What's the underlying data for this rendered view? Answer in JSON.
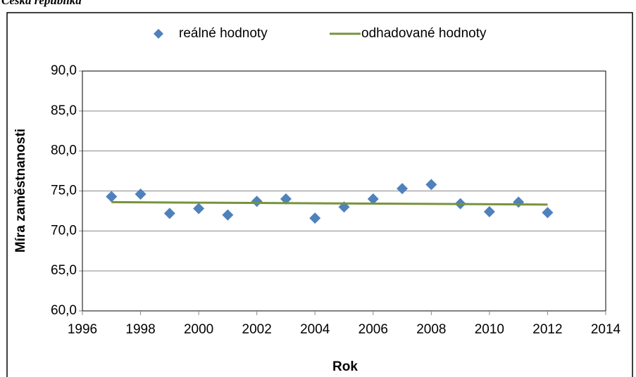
{
  "chart_data": {
    "type": "scatter",
    "title": "Česká republika",
    "x_label": "Rok",
    "y_label": "Míra zaměstnanosti",
    "xlim": [
      1996,
      2014
    ],
    "xticks": [
      1996,
      1998,
      2000,
      2002,
      2004,
      2006,
      2008,
      2010,
      2012,
      2014
    ],
    "ylim": [
      60,
      90
    ],
    "yticks": [
      {
        "value": 60,
        "label": "60,0"
      },
      {
        "value": 65,
        "label": "65,0"
      },
      {
        "value": 70,
        "label": "70,0"
      },
      {
        "value": 75,
        "label": "75,0"
      },
      {
        "value": 80,
        "label": "80,0"
      },
      {
        "value": 85,
        "label": "85,0"
      },
      {
        "value": 90,
        "label": "90,0"
      }
    ],
    "grid": true,
    "legend": "top",
    "series": [
      {
        "name": "reálné hodnoty",
        "type": "scatter",
        "color": "#4f81bd",
        "x": [
          1997,
          1998,
          1999,
          2000,
          2001,
          2002,
          2003,
          2004,
          2005,
          2006,
          2007,
          2008,
          2009,
          2010,
          2011,
          2012
        ],
        "values": [
          74.3,
          74.6,
          72.2,
          72.8,
          72.0,
          73.7,
          74.0,
          71.6,
          73.0,
          74.0,
          75.3,
          75.8,
          73.4,
          72.4,
          73.6,
          72.3
        ]
      },
      {
        "name": "odhadované hodnoty",
        "type": "line",
        "color": "#77933c",
        "x": [
          1997,
          2012
        ],
        "values": [
          73.6,
          73.3
        ]
      }
    ]
  }
}
